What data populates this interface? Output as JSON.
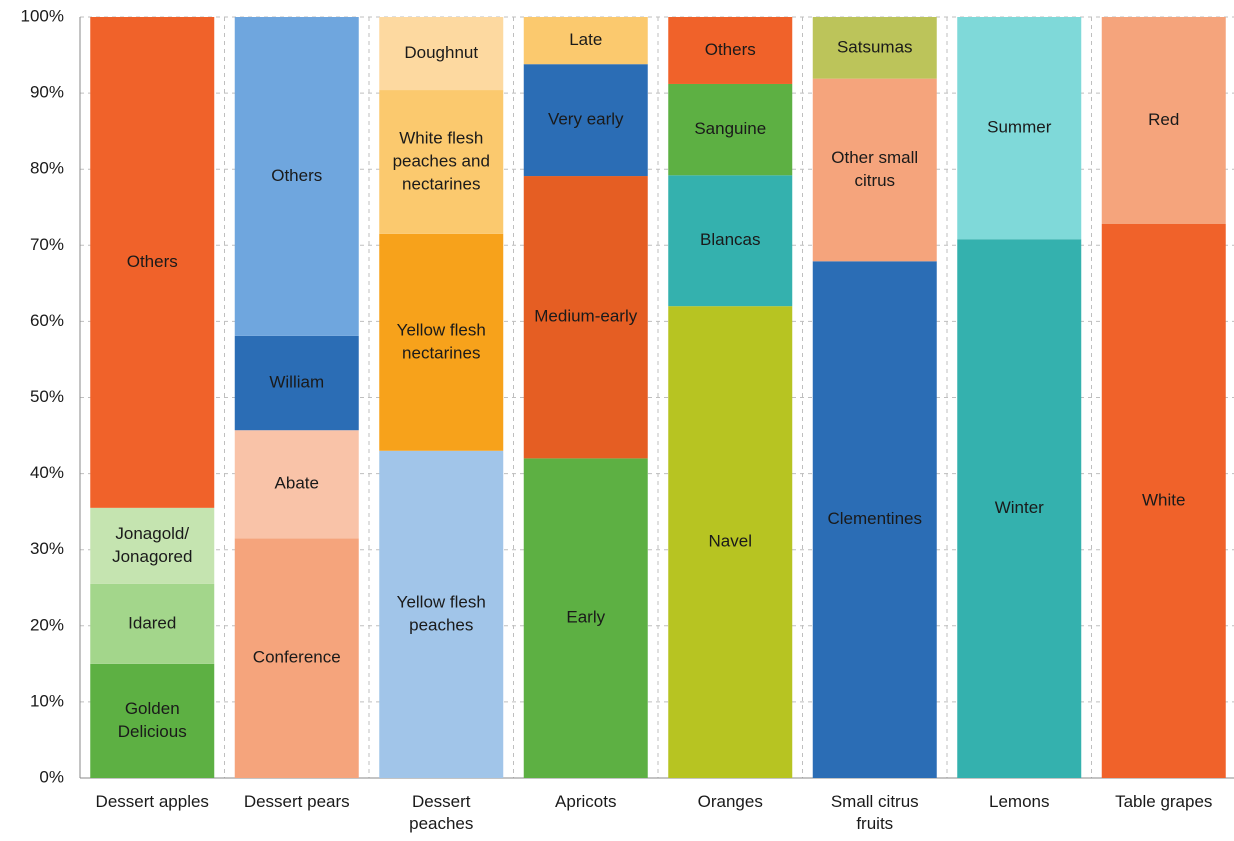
{
  "chart_data": {
    "type": "bar",
    "categories": [
      "Dessert apples",
      "Dessert pears",
      "Dessert peaches",
      "Apricots",
      "Oranges",
      "Small citrus fruits",
      "Lemons",
      "Table grapes"
    ],
    "bars": [
      {
        "segments": [
          {
            "name": "Golden Delicious",
            "color": "#5db043",
            "value": 15
          },
          {
            "name": "Idared",
            "color": "#a3d68b",
            "value": 10.5
          },
          {
            "name": "Jonagold/Jonagored",
            "color": "#c5e4b0",
            "value": 10
          },
          {
            "name": "Others",
            "color": "#f0622a",
            "value": 64.5
          }
        ]
      },
      {
        "segments": [
          {
            "name": "Conference",
            "color": "#f5a47c",
            "value": 31.5
          },
          {
            "name": "Abate",
            "color": "#f9c3a8",
            "value": 14.2
          },
          {
            "name": "William",
            "color": "#2b6db5",
            "value": 12.4
          },
          {
            "name": "Others",
            "color": "#6fa6de",
            "value": 41.9
          }
        ]
      },
      {
        "segments": [
          {
            "name": "Yellow flesh peaches",
            "color": "#a1c5e9",
            "value": 43
          },
          {
            "name": "Yellow flesh nectarines",
            "color": "#f7a21b",
            "value": 28.5
          },
          {
            "name": "White flesh peaches and nectarines",
            "color": "#fbc96e",
            "value": 18.9
          },
          {
            "name": "Doughnut",
            "color": "#fdd9a0",
            "value": 9.6
          }
        ]
      },
      {
        "segments": [
          {
            "name": "Early",
            "color": "#5db043",
            "value": 42
          },
          {
            "name": "Medium-early",
            "color": "#e55e23",
            "value": 37.1
          },
          {
            "name": "Very early",
            "color": "#2b6db5",
            "value": 14.7
          },
          {
            "name": "Late",
            "color": "#fbc96e",
            "value": 6.2
          }
        ]
      },
      {
        "segments": [
          {
            "name": "Navel",
            "color": "#b7c422",
            "value": 62
          },
          {
            "name": "Blancas",
            "color": "#34b1ae",
            "value": 17.2
          },
          {
            "name": "Sanguine",
            "color": "#5db043",
            "value": 12
          },
          {
            "name": "Others",
            "color": "#f0622a",
            "value": 8.8
          }
        ]
      },
      {
        "segments": [
          {
            "name": "Clementines",
            "color": "#2b6db5",
            "value": 67.9
          },
          {
            "name": "Other small citrus",
            "color": "#f5a47c",
            "value": 24
          },
          {
            "name": "Satsumas",
            "color": "#bcc45a",
            "value": 8.1
          }
        ]
      },
      {
        "segments": [
          {
            "name": "Winter",
            "color": "#34b1ae",
            "value": 70.8
          },
          {
            "name": "Summer",
            "color": "#7fd9d9",
            "value": 29.2
          }
        ]
      },
      {
        "segments": [
          {
            "name": "White",
            "color": "#f0622a",
            "value": 72.8
          },
          {
            "name": "Red",
            "color": "#f5a47c",
            "value": 27.2
          }
        ]
      }
    ],
    "ylim": [
      0,
      100
    ],
    "yticks": [
      {
        "value": 0,
        "label": "0%"
      },
      {
        "value": 10,
        "label": "10%"
      },
      {
        "value": 20,
        "label": "20%"
      },
      {
        "value": 30,
        "label": "30%"
      },
      {
        "value": 40,
        "label": "40%"
      },
      {
        "value": 50,
        "label": "50%"
      },
      {
        "value": 60,
        "label": "60%"
      },
      {
        "value": 70,
        "label": "70%"
      },
      {
        "value": 80,
        "label": "80%"
      },
      {
        "value": 90,
        "label": "90%"
      },
      {
        "value": 100,
        "label": "100%"
      }
    ],
    "grid": true
  }
}
